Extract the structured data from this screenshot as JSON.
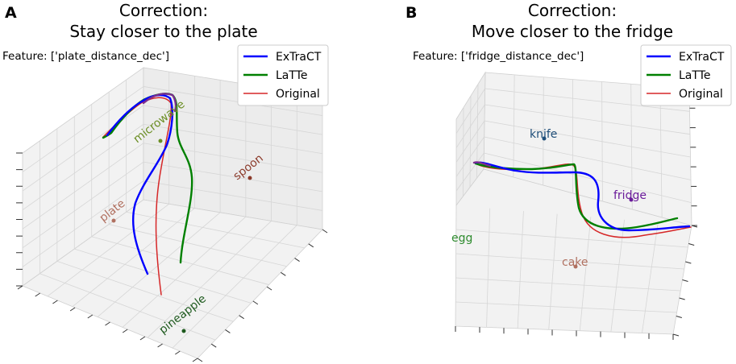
{
  "chart_data": [
    {
      "type": "3d-line",
      "panel": "A",
      "title": "Correction:\nStay closer to the plate",
      "title_lines": [
        "Correction:",
        "Stay closer to the plate"
      ],
      "feature_label": "Feature: ['plate_distance_dec']",
      "legend_position": "top-right",
      "grid": true,
      "series": [
        {
          "name": "ExTraCT",
          "color": "#0000ff"
        },
        {
          "name": "LaTTe",
          "color": "#008000"
        },
        {
          "name": "Original",
          "color": "#d62728"
        }
      ],
      "objects": [
        {
          "name": "microwave",
          "color": "#6b8e23"
        },
        {
          "name": "spoon",
          "color": "#8b3a2a"
        },
        {
          "name": "plate",
          "color": "#b07060"
        },
        {
          "name": "pineapple",
          "color": "#1e5a1e"
        }
      ]
    },
    {
      "type": "3d-line",
      "panel": "B",
      "title": "Correction:\nMove closer to the fridge",
      "title_lines": [
        "Correction:",
        "Move closer to the fridge"
      ],
      "feature_label": "Feature: ['fridge_distance_dec']",
      "legend_position": "top-right",
      "grid": true,
      "series": [
        {
          "name": "ExTraCT",
          "color": "#0000ff"
        },
        {
          "name": "LaTTe",
          "color": "#008000"
        },
        {
          "name": "Original",
          "color": "#d62728"
        }
      ],
      "objects": [
        {
          "name": "knife",
          "color": "#1f4e79"
        },
        {
          "name": "fridge",
          "color": "#6a1b9a"
        },
        {
          "name": "egg",
          "color": "#2e8b2e"
        },
        {
          "name": "cake",
          "color": "#b07060"
        }
      ]
    }
  ]
}
